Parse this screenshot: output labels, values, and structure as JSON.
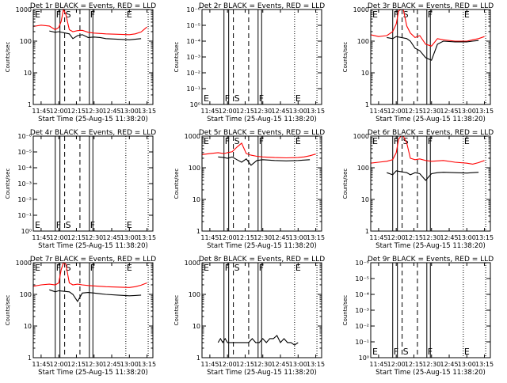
{
  "figure": {
    "background": "#ffffff",
    "colors": {
      "events": "#000000",
      "lld": "#ff0000",
      "axis": "#000000"
    }
  },
  "chart_data": [
    {
      "type": "line",
      "title": "Det 1r BLACK = Events, RED = LLD",
      "xlabel": "Start Time (25-Aug-15 11:38:20)",
      "ylabel": "Counts/sec",
      "x_ticks": [
        "11:45",
        "12:00",
        "12:15",
        "12:30",
        "12:45",
        "13:00",
        "13:15"
      ],
      "y_ticks": [
        "1",
        "10",
        "100",
        "1000"
      ],
      "y_scale": "log",
      "ylim": [
        1,
        1000
      ],
      "markers": [
        "E",
        "F",
        "S",
        "F",
        "E"
      ],
      "series": [
        {
          "name": "LLD",
          "color": "#ff0000",
          "x": [
            "11:38",
            "11:45",
            "11:52",
            "11:57",
            "12:00",
            "12:02",
            "12:04",
            "12:06",
            "12:09",
            "12:12",
            "12:16",
            "12:20",
            "12:25",
            "12:30",
            "12:35",
            "12:40",
            "12:50",
            "13:00",
            "13:05",
            "13:10",
            "13:15"
          ],
          "y": [
            290,
            320,
            300,
            230,
            270,
            420,
            1000,
            700,
            230,
            200,
            215,
            220,
            190,
            180,
            175,
            170,
            165,
            160,
            170,
            195,
            280
          ]
        },
        {
          "name": "Events",
          "color": "#000000",
          "x": [
            "11:52",
            "11:57",
            "12:00",
            "12:09",
            "12:12",
            "12:16",
            "12:20",
            "12:25",
            "12:30",
            "12:35",
            "12:40",
            "12:50",
            "13:00",
            "13:05",
            "13:10"
          ],
          "y": [
            210,
            190,
            200,
            170,
            120,
            150,
            160,
            130,
            135,
            130,
            120,
            115,
            110,
            115,
            120
          ]
        }
      ]
    },
    {
      "type": "line",
      "title": "Det 2r BLACK = Events, RED = LLD",
      "xlabel": "Start Time (25-Aug-15 11:38:20)",
      "ylabel": "Counts/sec",
      "x_ticks": [
        "11:45",
        "12:00",
        "12:15",
        "12:30",
        "12:45",
        "13:00",
        "13:15"
      ],
      "y_ticks": [
        "10⁰",
        "10⁻¹",
        "10⁻²",
        "10⁻³",
        "10⁻⁴",
        "10⁻⁵",
        "10⁻⁶"
      ],
      "y_scale": "log",
      "markers": [
        "E",
        "F",
        "S",
        "F",
        "E"
      ],
      "series": []
    },
    {
      "type": "line",
      "title": "Det 3r BLACK = Events, RED = LLD",
      "xlabel": "Start Time (25-Aug-15 11:38:20)",
      "ylabel": "Counts/sec",
      "x_ticks": [
        "11:45",
        "12:00",
        "12:15",
        "12:30",
        "12:45",
        "13:00",
        "13:15"
      ],
      "y_ticks": [
        "1",
        "10",
        "100",
        "1000"
      ],
      "y_scale": "log",
      "ylim": [
        1,
        1000
      ],
      "markers": [
        "E",
        "F",
        "S",
        "F",
        "E"
      ],
      "series": [
        {
          "name": "LLD",
          "color": "#ff0000",
          "x": [
            "11:38",
            "11:45",
            "11:52",
            "11:57",
            "12:00",
            "12:02",
            "12:04",
            "12:06",
            "12:09",
            "12:12",
            "12:16",
            "12:20",
            "12:25",
            "12:30",
            "12:35",
            "12:40",
            "12:50",
            "13:00",
            "13:05",
            "13:10",
            "13:15"
          ],
          "y": [
            160,
            140,
            150,
            200,
            350,
            900,
            1000,
            1000,
            300,
            180,
            130,
            150,
            80,
            70,
            120,
            110,
            100,
            100,
            110,
            120,
            140
          ]
        },
        {
          "name": "Events",
          "color": "#000000",
          "x": [
            "11:52",
            "11:57",
            "12:00",
            "12:09",
            "12:12",
            "12:16",
            "12:20",
            "12:25",
            "12:30",
            "12:35",
            "12:40",
            "12:50",
            "13:00",
            "13:05",
            "13:10"
          ],
          "y": [
            130,
            120,
            140,
            120,
            100,
            60,
            50,
            30,
            25,
            80,
            100,
            95,
            95,
            100,
            105
          ]
        }
      ]
    },
    {
      "type": "line",
      "title": "Det 4r BLACK = Events, RED = LLD",
      "xlabel": "Start Time (25-Aug-15 11:38:20)",
      "ylabel": "Counts/sec",
      "x_ticks": [
        "11:45",
        "12:00",
        "12:15",
        "12:30",
        "12:45",
        "13:00",
        "13:15"
      ],
      "y_ticks": [
        "10⁰",
        "10⁻¹",
        "10⁻²",
        "10⁻³",
        "10⁻⁴",
        "10⁻⁵",
        "10⁻⁶"
      ],
      "y_scale": "log",
      "markers": [
        "E",
        "F",
        "S",
        "F",
        "E"
      ],
      "series": []
    },
    {
      "type": "line",
      "title": "Det 5r BLACK = Events, RED = LLD",
      "xlabel": "Start Time (25-Aug-15 11:38:20)",
      "ylabel": "Counts/sec",
      "x_ticks": [
        "11:45",
        "12:00",
        "12:15",
        "12:30",
        "12:45",
        "13:00",
        "13:15"
      ],
      "y_ticks": [
        "1",
        "10",
        "100",
        "1000"
      ],
      "y_scale": "log",
      "ylim": [
        1,
        1000
      ],
      "markers": [
        "E",
        "F",
        "S",
        "F",
        "E"
      ],
      "series": [
        {
          "name": "LLD",
          "color": "#ff0000",
          "x": [
            "11:38",
            "11:45",
            "11:52",
            "11:57",
            "12:00",
            "12:04",
            "12:08",
            "12:12",
            "12:16",
            "12:20",
            "12:25",
            "12:30",
            "12:35",
            "12:40",
            "12:50",
            "13:00",
            "13:05",
            "13:10",
            "13:15"
          ],
          "y": [
            260,
            280,
            300,
            280,
            300,
            320,
            450,
            600,
            280,
            250,
            230,
            220,
            215,
            210,
            205,
            210,
            220,
            240,
            270
          ]
        },
        {
          "name": "Events",
          "color": "#000000",
          "x": [
            "11:52",
            "11:57",
            "12:00",
            "12:04",
            "12:08",
            "12:12",
            "12:16",
            "12:20",
            "12:25",
            "12:30",
            "12:35",
            "12:40",
            "12:50",
            "13:00",
            "13:05",
            "13:10"
          ],
          "y": [
            220,
            210,
            200,
            220,
            180,
            150,
            190,
            120,
            170,
            180,
            175,
            170,
            165,
            170,
            175,
            180
          ]
        }
      ]
    },
    {
      "type": "line",
      "title": "Det 6r BLACK = Events, RED = LLD",
      "xlabel": "Start Time (25-Aug-15 11:38:20)",
      "ylabel": "Counts/sec",
      "x_ticks": [
        "11:45",
        "12:00",
        "12:15",
        "12:30",
        "12:45",
        "13:00",
        "13:15"
      ],
      "y_ticks": [
        "1",
        "10",
        "100",
        "1000"
      ],
      "y_scale": "log",
      "ylim": [
        1,
        1000
      ],
      "markers": [
        "E",
        "F",
        "S",
        "F",
        "E"
      ],
      "series": [
        {
          "name": "LLD",
          "color": "#ff0000",
          "x": [
            "11:38",
            "11:45",
            "11:52",
            "11:57",
            "12:00",
            "12:02",
            "12:04",
            "12:06",
            "12:09",
            "12:12",
            "12:16",
            "12:20",
            "12:25",
            "12:30",
            "12:35",
            "12:40",
            "12:50",
            "13:00",
            "13:05",
            "13:10",
            "13:15"
          ],
          "y": [
            140,
            150,
            160,
            180,
            300,
            800,
            1000,
            1000,
            600,
            200,
            180,
            190,
            170,
            160,
            165,
            170,
            150,
            140,
            130,
            145,
            170
          ]
        },
        {
          "name": "Events",
          "color": "#000000",
          "x": [
            "11:52",
            "11:57",
            "12:00",
            "12:09",
            "12:12",
            "12:16",
            "12:20",
            "12:25",
            "12:30",
            "12:35",
            "12:40",
            "12:50",
            "13:00",
            "13:05",
            "13:10"
          ],
          "y": [
            70,
            60,
            80,
            70,
            60,
            70,
            65,
            40,
            65,
            70,
            72,
            70,
            68,
            70,
            72
          ]
        }
      ]
    },
    {
      "type": "line",
      "title": "Det 7r BLACK = Events, RED = LLD",
      "xlabel": "Start Time (25-Aug-15 11:38:20)",
      "ylabel": "Counts/sec",
      "x_ticks": [
        "11:45",
        "12:00",
        "12:15",
        "12:30",
        "12:45",
        "13:00",
        "13:15"
      ],
      "y_ticks": [
        "1",
        "10",
        "100",
        "1000"
      ],
      "y_scale": "log",
      "ylim": [
        1,
        1000
      ],
      "markers": [
        "E",
        "F",
        "S",
        "F",
        "E"
      ],
      "series": [
        {
          "name": "LLD",
          "color": "#ff0000",
          "x": [
            "11:38",
            "11:45",
            "11:52",
            "11:57",
            "12:00",
            "12:02",
            "12:04",
            "12:06",
            "12:09",
            "12:12",
            "12:16",
            "12:20",
            "12:25",
            "12:30",
            "12:35",
            "12:40",
            "12:50",
            "13:00",
            "13:05",
            "13:10",
            "13:15"
          ],
          "y": [
            180,
            200,
            210,
            200,
            230,
            600,
            1000,
            900,
            230,
            200,
            210,
            200,
            190,
            185,
            180,
            175,
            170,
            165,
            175,
            195,
            230
          ]
        },
        {
          "name": "Events",
          "color": "#000000",
          "x": [
            "11:52",
            "11:57",
            "12:00",
            "12:09",
            "12:12",
            "12:16",
            "12:20",
            "12:25",
            "12:30",
            "12:35",
            "12:40",
            "12:50",
            "13:00",
            "13:05",
            "13:10"
          ],
          "y": [
            140,
            120,
            130,
            120,
            100,
            60,
            110,
            115,
            110,
            105,
            100,
            95,
            90,
            92,
            95
          ]
        }
      ]
    },
    {
      "type": "line",
      "title": "Det 8r BLACK = Events, RED = LLD",
      "xlabel": "Start Time (25-Aug-15 11:38:20)",
      "ylabel": "Counts/sec",
      "x_ticks": [
        "11:45",
        "12:00",
        "12:15",
        "12:30",
        "12:45",
        "13:00",
        "13:15"
      ],
      "y_ticks": [
        "1",
        "10",
        "100",
        "1000"
      ],
      "y_scale": "log",
      "ylim": [
        1,
        1000
      ],
      "markers": [
        "E",
        "F",
        "S",
        "F",
        "E"
      ],
      "series": [
        {
          "name": "Events",
          "color": "#000000",
          "x": [
            "11:52",
            "11:54",
            "11:56",
            "11:58",
            "12:00",
            "12:18",
            "12:21",
            "12:24",
            "12:27",
            "12:30",
            "12:33",
            "12:36",
            "12:39",
            "12:42",
            "12:45",
            "12:48",
            "12:51",
            "12:54",
            "12:57",
            "13:00"
          ],
          "y": [
            3,
            4,
            3,
            4,
            3,
            3,
            4,
            3,
            3,
            4,
            3,
            4,
            4,
            5,
            3,
            4,
            3,
            3,
            2.5,
            3
          ]
        }
      ]
    },
    {
      "type": "line",
      "title": "Det 9r BLACK = Events, RED = LLD",
      "xlabel": "Start Time (25-Aug-15 11:38:20)",
      "ylabel": "Counts/sec",
      "x_ticks": [
        "11:45",
        "12:00",
        "12:15",
        "12:30",
        "12:45",
        "13:00",
        "13:15"
      ],
      "y_ticks": [
        "10⁰",
        "10⁻¹",
        "10⁻²",
        "10⁻³",
        "10⁻⁴",
        "10⁻⁵",
        "10⁻⁶"
      ],
      "y_scale": "log",
      "markers": [
        "E",
        "F",
        "S",
        "F",
        "E"
      ],
      "series": []
    }
  ]
}
